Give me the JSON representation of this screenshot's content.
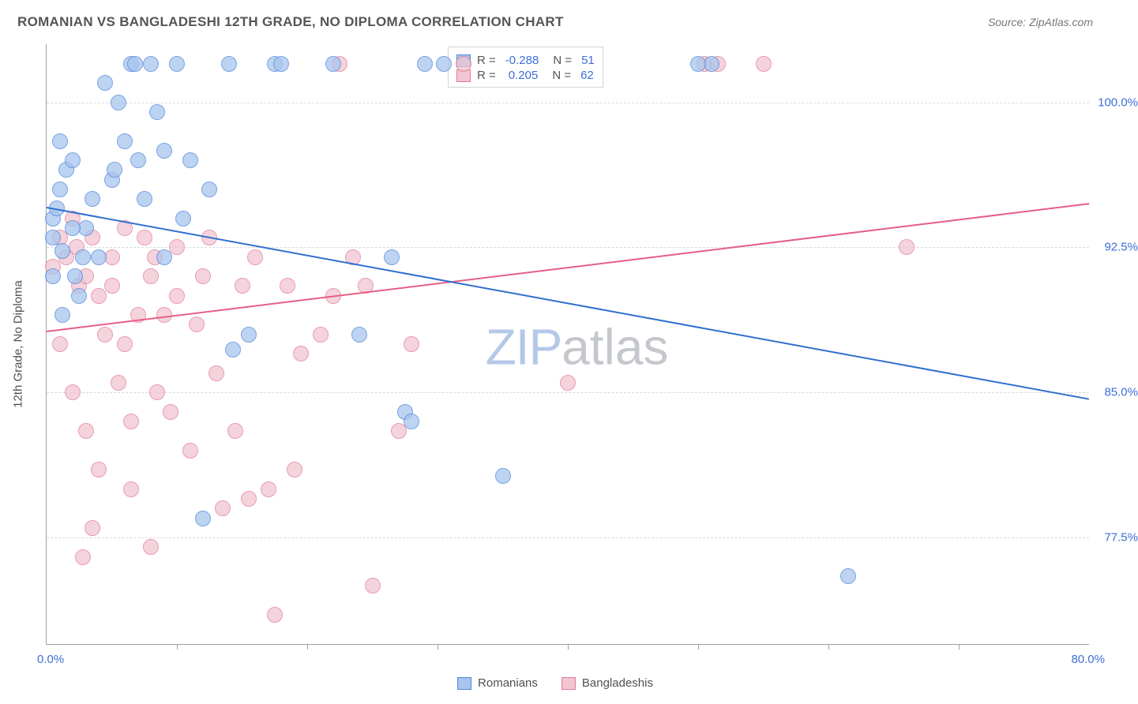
{
  "title": "ROMANIAN VS BANGLADESHI 12TH GRADE, NO DIPLOMA CORRELATION CHART",
  "source": "Source: ZipAtlas.com",
  "y_axis_label": "12th Grade, No Diploma",
  "chart": {
    "type": "scatter",
    "background_color": "#ffffff",
    "grid_color": "#d8dbe0",
    "axis_color": "#9aa0a6",
    "xlim": [
      0,
      80
    ],
    "ylim": [
      72,
      103
    ],
    "x_tick_step": 10,
    "y_ticks": [
      77.5,
      85.0,
      92.5,
      100.0
    ],
    "x_start_label": "0.0%",
    "x_end_label": "80.0%",
    "y_tick_labels": [
      "77.5%",
      "85.0%",
      "92.5%",
      "100.0%"
    ],
    "tick_label_color": "#3d6fd6",
    "axis_label_color": "#505050",
    "label_fontsize": 15,
    "marker_radius": 10,
    "marker_opacity_fill": 0.28,
    "marker_border_width": 1.2,
    "series": {
      "romanians": {
        "label": "Romanians",
        "color_border": "#4f86d9",
        "color_fill": "#a8c5ee",
        "r": -0.288,
        "n": 51,
        "trend": {
          "x1": 0,
          "y1": 94.6,
          "x2": 80,
          "y2": 84.7,
          "color": "#2f6fd0",
          "width": 2
        },
        "points": [
          [
            0.5,
            94.0
          ],
          [
            0.5,
            93.0
          ],
          [
            0.8,
            94.5
          ],
          [
            1.2,
            92.3
          ],
          [
            1.0,
            95.5
          ],
          [
            1.5,
            96.5
          ],
          [
            1.0,
            98.0
          ],
          [
            2.0,
            97.0
          ],
          [
            2.2,
            91.0
          ],
          [
            2.5,
            90.0
          ],
          [
            2.8,
            92.0
          ],
          [
            0.5,
            91.0
          ],
          [
            1.2,
            89.0
          ],
          [
            3.0,
            93.5
          ],
          [
            3.5,
            95.0
          ],
          [
            4.0,
            92.0
          ],
          [
            5.0,
            96.0
          ],
          [
            5.2,
            96.5
          ],
          [
            6.0,
            98.0
          ],
          [
            6.5,
            102.0
          ],
          [
            6.8,
            102.0
          ],
          [
            8.0,
            102.0
          ],
          [
            7.0,
            97.0
          ],
          [
            7.5,
            95.0
          ],
          [
            8.5,
            99.5
          ],
          [
            9.0,
            97.5
          ],
          [
            10.0,
            102.0
          ],
          [
            10.5,
            94.0
          ],
          [
            11.0,
            97.0
          ],
          [
            12.5,
            95.5
          ],
          [
            14.0,
            102.0
          ],
          [
            14.3,
            87.2
          ],
          [
            15.5,
            88.0
          ],
          [
            17.5,
            102.0
          ],
          [
            18.0,
            102.0
          ],
          [
            22.0,
            102.0
          ],
          [
            24.0,
            88.0
          ],
          [
            26.5,
            92.0
          ],
          [
            27.5,
            84.0
          ],
          [
            28.0,
            83.5
          ],
          [
            29.0,
            102.0
          ],
          [
            30.5,
            102.0
          ],
          [
            35.0,
            80.7
          ],
          [
            9.0,
            92.0
          ],
          [
            12.0,
            78.5
          ],
          [
            4.5,
            101.0
          ],
          [
            5.5,
            100.0
          ],
          [
            2.0,
            93.5
          ],
          [
            51.0,
            102.0
          ],
          [
            61.5,
            75.5
          ],
          [
            50.0,
            102.0
          ]
        ]
      },
      "bangladeshis": {
        "label": "Bangladeshis",
        "color_border": "#e07c99",
        "color_fill": "#f2c5d1",
        "r": 0.205,
        "n": 62,
        "trend": {
          "x1": 0,
          "y1": 88.2,
          "x2": 80,
          "y2": 94.8,
          "color": "#e65f85",
          "width": 2
        },
        "points": [
          [
            0.5,
            91.5
          ],
          [
            1.0,
            93.0
          ],
          [
            1.5,
            92.0
          ],
          [
            2.0,
            94.0
          ],
          [
            2.3,
            92.5
          ],
          [
            2.5,
            90.5
          ],
          [
            3.0,
            91.0
          ],
          [
            3.5,
            93.0
          ],
          [
            4.0,
            90.0
          ],
          [
            4.5,
            88.0
          ],
          [
            5.0,
            90.5
          ],
          [
            5.5,
            85.5
          ],
          [
            6.0,
            87.5
          ],
          [
            6.0,
            93.5
          ],
          [
            6.5,
            83.5
          ],
          [
            7.0,
            89.0
          ],
          [
            1.0,
            87.5
          ],
          [
            2.0,
            85.0
          ],
          [
            3.0,
            83.0
          ],
          [
            3.5,
            78.0
          ],
          [
            4.0,
            81.0
          ],
          [
            8.0,
            91.0
          ],
          [
            8.3,
            92.0
          ],
          [
            8.5,
            85.0
          ],
          [
            9.0,
            89.0
          ],
          [
            9.5,
            84.0
          ],
          [
            10.0,
            90.0
          ],
          [
            11.0,
            82.0
          ],
          [
            11.5,
            88.5
          ],
          [
            12.0,
            91.0
          ],
          [
            13.0,
            86.0
          ],
          [
            13.5,
            79.0
          ],
          [
            14.5,
            83.0
          ],
          [
            15.0,
            90.5
          ],
          [
            15.5,
            79.5
          ],
          [
            16.0,
            92.0
          ],
          [
            17.0,
            80.0
          ],
          [
            17.5,
            73.5
          ],
          [
            19.0,
            81.0
          ],
          [
            19.5,
            87.0
          ],
          [
            21.0,
            88.0
          ],
          [
            22.0,
            90.0
          ],
          [
            22.5,
            102.0
          ],
          [
            24.5,
            90.5
          ],
          [
            25.0,
            75.0
          ],
          [
            27.0,
            83.0
          ],
          [
            28.0,
            87.5
          ],
          [
            40.0,
            85.5
          ],
          [
            10.0,
            92.5
          ],
          [
            8.0,
            77.0
          ],
          [
            6.5,
            80.0
          ],
          [
            5.0,
            92.0
          ],
          [
            12.5,
            93.0
          ],
          [
            32.0,
            102.0
          ],
          [
            50.5,
            102.0
          ],
          [
            51.5,
            102.0
          ],
          [
            55.0,
            102.0
          ],
          [
            66.0,
            92.5
          ],
          [
            2.8,
            76.5
          ],
          [
            7.5,
            93.0
          ],
          [
            18.5,
            90.5
          ],
          [
            23.5,
            92.0
          ]
        ]
      }
    }
  },
  "stats_box": {
    "r_label": "R =",
    "n_label": "N =",
    "border_color": "#cfd4dc"
  },
  "watermark": {
    "zip": "ZIP",
    "atlas": "atlas"
  },
  "bottom_legend": {
    "romanians": "Romanians",
    "bangladeshis": "Bangladeshis"
  }
}
